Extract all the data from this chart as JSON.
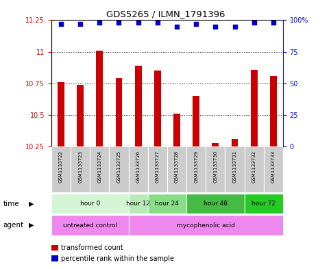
{
  "title": "GDS5265 / ILMN_1791396",
  "samples": [
    "GSM1133722",
    "GSM1133723",
    "GSM1133724",
    "GSM1133725",
    "GSM1133726",
    "GSM1133727",
    "GSM1133728",
    "GSM1133729",
    "GSM1133730",
    "GSM1133731",
    "GSM1133732",
    "GSM1133733"
  ],
  "bar_values": [
    10.76,
    10.74,
    11.01,
    10.79,
    10.89,
    10.85,
    10.51,
    10.65,
    10.28,
    10.31,
    10.86,
    10.81
  ],
  "percentile_values": [
    97,
    97,
    98,
    98,
    98,
    98,
    95,
    97,
    95,
    95,
    98,
    98
  ],
  "bar_color": "#cc0000",
  "percentile_color": "#0000cc",
  "ymin": 10.25,
  "ymax": 11.25,
  "yticks": [
    10.25,
    10.5,
    10.75,
    11.0,
    11.25
  ],
  "ytick_labels": [
    "10.25",
    "10.5",
    "10.75",
    "11",
    "11.25"
  ],
  "right_yticks": [
    0,
    25,
    50,
    75,
    100
  ],
  "right_ytick_labels": [
    "0",
    "25",
    "50",
    "75",
    "100%"
  ],
  "time_groups": [
    {
      "label": "hour 0",
      "indices": [
        0,
        1,
        2,
        3
      ],
      "color": "#d4f5d4"
    },
    {
      "label": "hour 12",
      "indices": [
        4
      ],
      "color": "#b8eab8"
    },
    {
      "label": "hour 24",
      "indices": [
        5,
        6
      ],
      "color": "#88dd88"
    },
    {
      "label": "hour 48",
      "indices": [
        7,
        8,
        9
      ],
      "color": "#44bb44"
    },
    {
      "label": "hour 72",
      "indices": [
        10,
        11
      ],
      "color": "#22cc22"
    }
  ],
  "legend_bar_label": "transformed count",
  "legend_dot_label": "percentile rank within the sample",
  "sample_bg_color": "#cccccc",
  "agent_uc_color": "#ee88ee",
  "agent_ma_color": "#ee88ee"
}
